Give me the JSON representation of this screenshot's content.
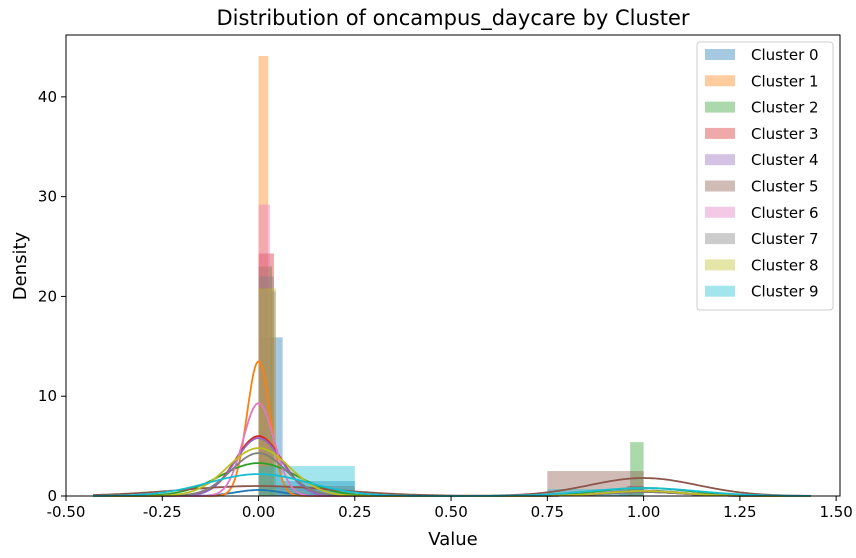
{
  "chart_data": {
    "type": "histogram",
    "title": "Distribution of oncampus_daycare by Cluster",
    "xlabel": "Value",
    "ylabel": "Density",
    "xlim": [
      -0.5,
      1.51
    ],
    "ylim": [
      0,
      46.2
    ],
    "xticks": [
      "-0.50",
      "-0.25",
      "0.00",
      "0.25",
      "0.50",
      "0.75",
      "1.00",
      "1.25",
      "1.50"
    ],
    "xtick_values": [
      -0.5,
      -0.25,
      0.0,
      0.25,
      0.5,
      0.75,
      1.0,
      1.25,
      1.5
    ],
    "yticks": [
      "0",
      "10",
      "20",
      "30",
      "40"
    ],
    "ytick_values": [
      0,
      10,
      20,
      30,
      40
    ],
    "legend_position": "top-right",
    "series": [
      {
        "name": "Cluster 0",
        "color": "#1f77b4",
        "bars": [
          {
            "x0": 0.0,
            "x1": 0.0625,
            "h": 15.9
          },
          {
            "x0": 0.0625,
            "x1": 0.25,
            "h": 1.5
          },
          {
            "x0": 0.9375,
            "x1": 1.0,
            "h": 0.6
          }
        ],
        "kde": {
          "peak": 0.6,
          "peak_x": 0.0,
          "sd": 0.06,
          "peak2": 0.55,
          "peak2_x": 1.0,
          "sd2": 0.1
        }
      },
      {
        "name": "Cluster 1",
        "color": "#ff7f0e",
        "bars": [
          {
            "x0": 0.0,
            "x1": 0.025,
            "h": 44.1
          },
          {
            "x0": 0.975,
            "x1": 1.0,
            "h": 0.5
          }
        ],
        "kde": {
          "peak": 13.5,
          "peak_x": 0.0,
          "sd": 0.03,
          "peak2": 0.5,
          "peak2_x": 1.0,
          "sd2": 0.1
        }
      },
      {
        "name": "Cluster 2",
        "color": "#2ca02c",
        "bars": [
          {
            "x0": 0.0,
            "x1": 0.035,
            "h": 23.0
          },
          {
            "x0": 0.965,
            "x1": 1.0,
            "h": 5.4
          }
        ],
        "kde": {
          "peak": 3.3,
          "peak_x": 0.0,
          "sd": 0.1,
          "peak2": 0.8,
          "peak2_x": 1.0,
          "sd2": 0.12
        }
      },
      {
        "name": "Cluster 3",
        "color": "#d62728",
        "bars": [
          {
            "x0": 0.0,
            "x1": 0.04,
            "h": 24.3
          },
          {
            "x0": 0.96,
            "x1": 1.0,
            "h": 1.0
          }
        ],
        "kde": {
          "peak": 6.0,
          "peak_x": 0.0,
          "sd": 0.06,
          "peak2": 0.4,
          "peak2_x": 1.0,
          "sd2": 0.1
        }
      },
      {
        "name": "Cluster 4",
        "color": "#9467bd",
        "bars": [
          {
            "x0": 0.0,
            "x1": 0.045,
            "h": 20.5
          },
          {
            "x0": 0.955,
            "x1": 1.0,
            "h": 1.0
          }
        ],
        "kde": {
          "peak": 5.8,
          "peak_x": 0.0,
          "sd": 0.06,
          "peak2": 0.4,
          "peak2_x": 1.0,
          "sd2": 0.1
        }
      },
      {
        "name": "Cluster 5",
        "color": "#8c564b",
        "bars": [
          {
            "x0": 0.0,
            "x1": 0.25,
            "h": 1.0
          },
          {
            "x0": 0.75,
            "x1": 1.0,
            "h": 2.5
          }
        ],
        "kde": {
          "peak": 1.0,
          "peak_x": 0.0,
          "sd": 0.2,
          "peak2": 1.8,
          "peak2_x": 1.0,
          "sd2": 0.14
        }
      },
      {
        "name": "Cluster 6",
        "color": "#e377c2",
        "bars": [
          {
            "x0": 0.0,
            "x1": 0.03,
            "h": 29.2
          },
          {
            "x0": 0.97,
            "x1": 1.0,
            "h": 0.5
          }
        ],
        "kde": {
          "peak": 9.3,
          "peak_x": 0.0,
          "sd": 0.04,
          "peak2": 0.5,
          "peak2_x": 1.0,
          "sd2": 0.1
        }
      },
      {
        "name": "Cluster 7",
        "color": "#7f7f7f",
        "bars": [
          {
            "x0": 0.0,
            "x1": 0.04,
            "h": 22.0
          },
          {
            "x0": 0.96,
            "x1": 1.0,
            "h": 0.8
          }
        ],
        "kde": {
          "peak": 4.3,
          "peak_x": 0.0,
          "sd": 0.07,
          "peak2": 0.4,
          "peak2_x": 1.0,
          "sd2": 0.1
        }
      },
      {
        "name": "Cluster 8",
        "color": "#bcbd22",
        "bars": [
          {
            "x0": 0.0,
            "x1": 0.045,
            "h": 20.8
          },
          {
            "x0": 0.955,
            "x1": 1.0,
            "h": 0.9
          }
        ],
        "kde": {
          "peak": 4.8,
          "peak_x": 0.0,
          "sd": 0.08,
          "peak2": 0.5,
          "peak2_x": 1.0,
          "sd2": 0.1
        }
      },
      {
        "name": "Cluster 9",
        "color": "#17becf",
        "bars": [
          {
            "x0": 0.0,
            "x1": 0.25,
            "h": 3.0
          },
          {
            "x0": 0.75,
            "x1": 1.0,
            "h": 0.7
          }
        ],
        "kde": {
          "peak": 2.2,
          "peak_x": 0.0,
          "sd": 0.13,
          "peak2": 0.8,
          "peak2_x": 1.0,
          "sd2": 0.14
        }
      }
    ]
  }
}
